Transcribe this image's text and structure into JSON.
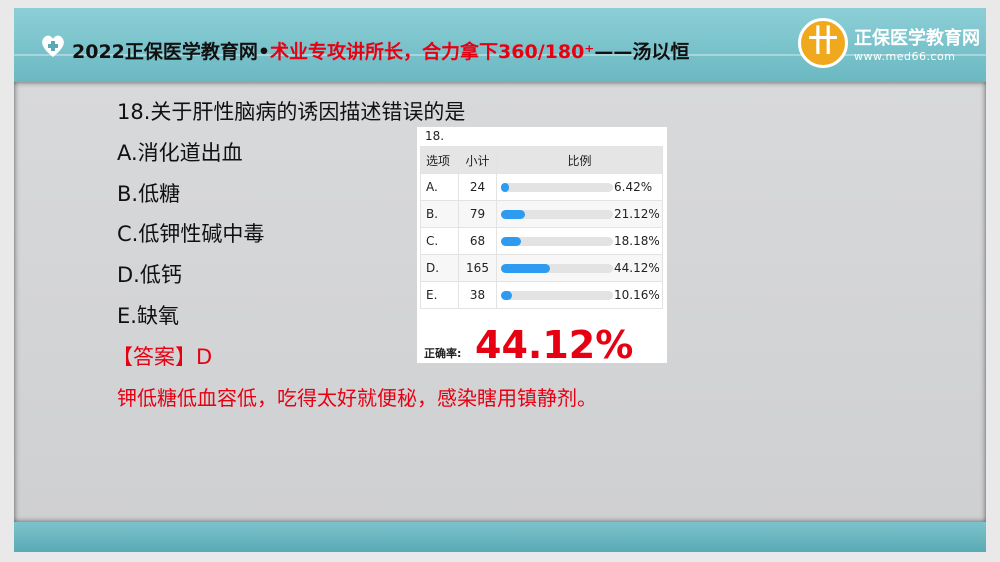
{
  "header": {
    "title_prefix": "2022正保医学教育网•",
    "title_red": "术业专攻讲所长，合力拿下360/180⁺",
    "title_suffix": "——汤以恒",
    "logo_name": "正保医学教育网",
    "logo_url": "www.med66.com"
  },
  "question": {
    "stem": "18.关于肝性脑病的诱因描述错误的是",
    "options": [
      "A.消化道出血",
      "B.低糖",
      "C.低钾性碱中毒",
      "D.低钙",
      "E.缺氧"
    ],
    "answer": "【答案】D",
    "explanation": "钾低糖低血容低，吃得太好就便秘，感染瞎用镇静剂。"
  },
  "stats": {
    "number": "18.",
    "headers": [
      "选项",
      "小计",
      "比例"
    ],
    "rows": [
      {
        "option": "A.",
        "count": "24",
        "percent": "6.42%",
        "value": 6.42
      },
      {
        "option": "B.",
        "count": "79",
        "percent": "21.12%",
        "value": 21.12
      },
      {
        "option": "C.",
        "count": "68",
        "percent": "18.18%",
        "value": 18.18
      },
      {
        "option": "D.",
        "count": "165",
        "percent": "44.12%",
        "value": 44.12
      },
      {
        "option": "E.",
        "count": "38",
        "percent": "10.16%",
        "value": 10.16
      }
    ],
    "correct_label": "正确率:",
    "correct_value": "44.12%",
    "bar_color": "#2d9cf0"
  }
}
